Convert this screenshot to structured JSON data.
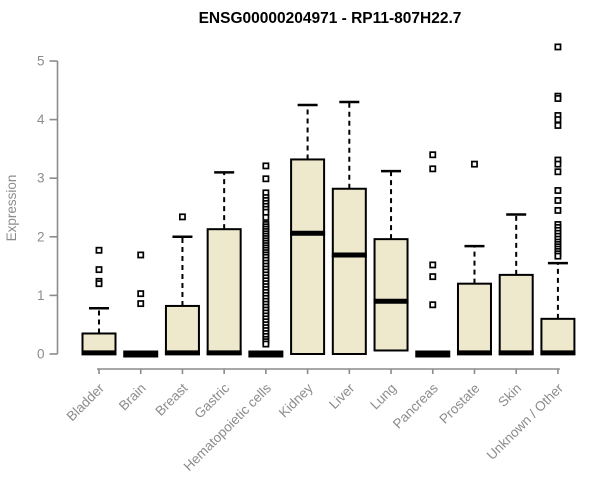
{
  "chart_data": {
    "type": "boxplot",
    "title": "ENSG00000204971 - RP11-807H22.7",
    "ylabel": "Expression",
    "xlabel": "",
    "ylim": [
      0,
      5
    ],
    "yticks": [
      0,
      1,
      2,
      3,
      4,
      5
    ],
    "grid": false,
    "legend": "none",
    "colors": {
      "box_fill": "#EEE8CD",
      "box_border": "#000000",
      "median": "#000000",
      "axis": "#8c8c8c",
      "title": "#000000",
      "background": "#ffffff"
    },
    "categories": [
      "Bladder",
      "Brain",
      "Breast",
      "Gastric",
      "Hematopoietic cells",
      "Kidney",
      "Liver",
      "Lung",
      "Pancreas",
      "Prostate",
      "Skin",
      "Unknown / Other"
    ],
    "boxes": [
      {
        "label": "Bladder",
        "q1": 0,
        "median": 0.02,
        "q3": 0.35,
        "whisker_low": 0,
        "whisker_high": 0.78,
        "outliers": [
          1.77,
          1.44,
          1.24,
          1.2
        ]
      },
      {
        "label": "Brain",
        "q1": 0,
        "median": 0,
        "q3": 0,
        "whisker_low": 0,
        "whisker_high": 0,
        "outliers": [
          1.69,
          1.03,
          0.86
        ]
      },
      {
        "label": "Breast",
        "q1": 0,
        "median": 0.02,
        "q3": 0.82,
        "whisker_low": 0,
        "whisker_high": 2.0,
        "outliers": [
          2.34
        ]
      },
      {
        "label": "Gastric",
        "q1": 0,
        "median": 0.02,
        "q3": 2.13,
        "whisker_low": 0,
        "whisker_high": 3.1,
        "outliers": []
      },
      {
        "label": "Hematopoietic cells",
        "q1": 0,
        "median": 0,
        "q3": 0,
        "whisker_low": 0,
        "whisker_high": 0,
        "outliers": [
          3.21,
          2.99,
          2.75,
          2.67,
          2.62,
          2.57,
          2.52,
          2.47,
          2.42,
          2.33,
          2.21,
          2.17,
          2.13,
          2.09,
          2.05,
          2.01,
          1.97,
          1.93,
          1.89,
          1.85,
          1.81,
          1.77,
          1.73,
          1.69,
          1.65,
          1.6,
          1.55,
          1.5,
          1.45,
          1.4,
          1.35,
          1.3,
          1.25,
          1.2,
          1.15,
          1.1,
          1.05,
          1.0,
          0.95,
          0.9,
          0.85,
          0.8,
          0.75,
          0.7,
          0.65,
          0.6,
          0.55,
          0.5,
          0.45,
          0.4,
          0.35,
          0.3,
          0.25,
          0.21,
          0.17
        ]
      },
      {
        "label": "Kidney",
        "q1": 0,
        "median": 2.06,
        "q3": 3.32,
        "whisker_low": 0,
        "whisker_high": 4.25,
        "outliers": []
      },
      {
        "label": "Liver",
        "q1": 0,
        "median": 1.69,
        "q3": 2.82,
        "whisker_low": 0,
        "whisker_high": 4.3,
        "outliers": []
      },
      {
        "label": "Lung",
        "q1": 0.06,
        "median": 0.9,
        "q3": 1.96,
        "whisker_low": 0.06,
        "whisker_high": 3.12,
        "outliers": []
      },
      {
        "label": "Pancreas",
        "q1": 0,
        "median": 0,
        "q3": 0,
        "whisker_low": 0,
        "whisker_high": 0,
        "outliers": [
          3.4,
          3.16,
          1.52,
          1.32,
          0.84
        ]
      },
      {
        "label": "Prostate",
        "q1": 0,
        "median": 0.02,
        "q3": 1.2,
        "whisker_low": 0,
        "whisker_high": 1.84,
        "outliers": [
          3.24
        ]
      },
      {
        "label": "Skin",
        "q1": 0,
        "median": 0.02,
        "q3": 1.35,
        "whisker_low": 0,
        "whisker_high": 2.38,
        "outliers": []
      },
      {
        "label": "Unknown / Other",
        "q1": 0,
        "median": 0.02,
        "q3": 0.6,
        "whisker_low": 0,
        "whisker_high": 1.55,
        "outliers": [
          5.24,
          4.4,
          4.36,
          4.07,
          4.0,
          3.9,
          3.31,
          3.24,
          3.11,
          2.79,
          2.62,
          2.45,
          2.21,
          2.16,
          2.11,
          2.06,
          2.01,
          1.96,
          1.91,
          1.87,
          1.83,
          1.79,
          1.75,
          1.71,
          1.67
        ]
      }
    ]
  }
}
